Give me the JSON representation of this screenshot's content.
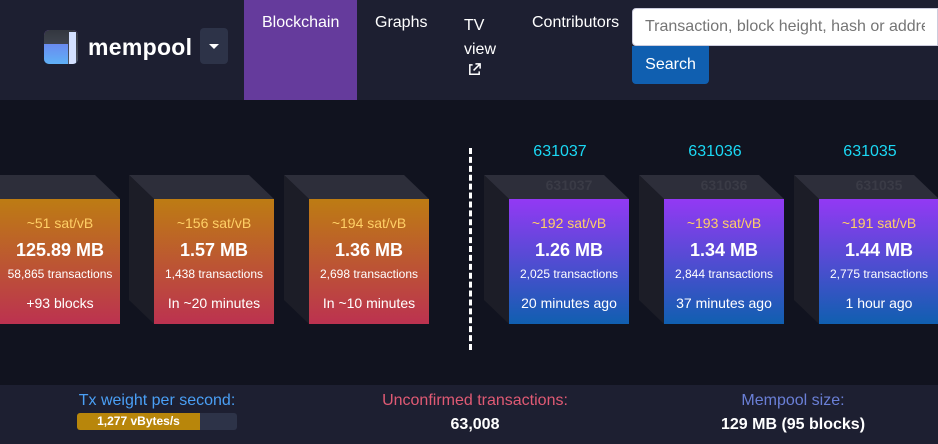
{
  "brand": {
    "name": "mempool"
  },
  "nav": {
    "blockchain": "Blockchain",
    "graphs": "Graphs",
    "tv": "TV view",
    "contributors": "Contributors"
  },
  "search": {
    "placeholder": "Transaction, block height, hash or address",
    "button": "Search"
  },
  "pending_blocks": [
    {
      "fee": "~51 sat/vB",
      "size": "125.89 MB",
      "txs": "58,865 transactions",
      "eta": "+93 blocks"
    },
    {
      "fee": "~156 sat/vB",
      "size": "1.57 MB",
      "txs": "1,438 transactions",
      "eta": "In ~20 minutes"
    },
    {
      "fee": "~194 sat/vB",
      "size": "1.36 MB",
      "txs": "2,698 transactions",
      "eta": "In ~10 minutes"
    }
  ],
  "mined_blocks": [
    {
      "height": "631037",
      "fee": "~192 sat/vB",
      "size": "1.26 MB",
      "txs": "2,025 transactions",
      "age": "20 minutes ago"
    },
    {
      "height": "631036",
      "fee": "~193 sat/vB",
      "size": "1.34 MB",
      "txs": "2,844 transactions",
      "age": "37 minutes ago"
    },
    {
      "height": "631035",
      "fee": "~191 sat/vB",
      "size": "1.44 MB",
      "txs": "2,775 transactions",
      "age": "1 hour ago"
    }
  ],
  "footer": {
    "tx_weight_label": "Tx weight per second:",
    "tx_weight_value": "1,277 vBytes/s",
    "tx_weight_fill_fraction": 0.77,
    "unconfirmed_label": "Unconfirmed transactions:",
    "unconfirmed_value": "63,008",
    "mempool_size_label": "Mempool size:",
    "mempool_size_value": "129 MB (95 blocks)"
  },
  "colors": {
    "nav_active": "#653b9c",
    "accent_blue": "#105fb0",
    "height_label": "#1bd8f4",
    "fee_text": "#ffcf66",
    "tx_weight_label": "#4a9ff5",
    "unconfirmed_label": "#e05a74",
    "mempool_size_label": "#6a7fd6"
  },
  "icons": {
    "external_link": "external-link-icon",
    "caret": "chevron-down-icon"
  }
}
